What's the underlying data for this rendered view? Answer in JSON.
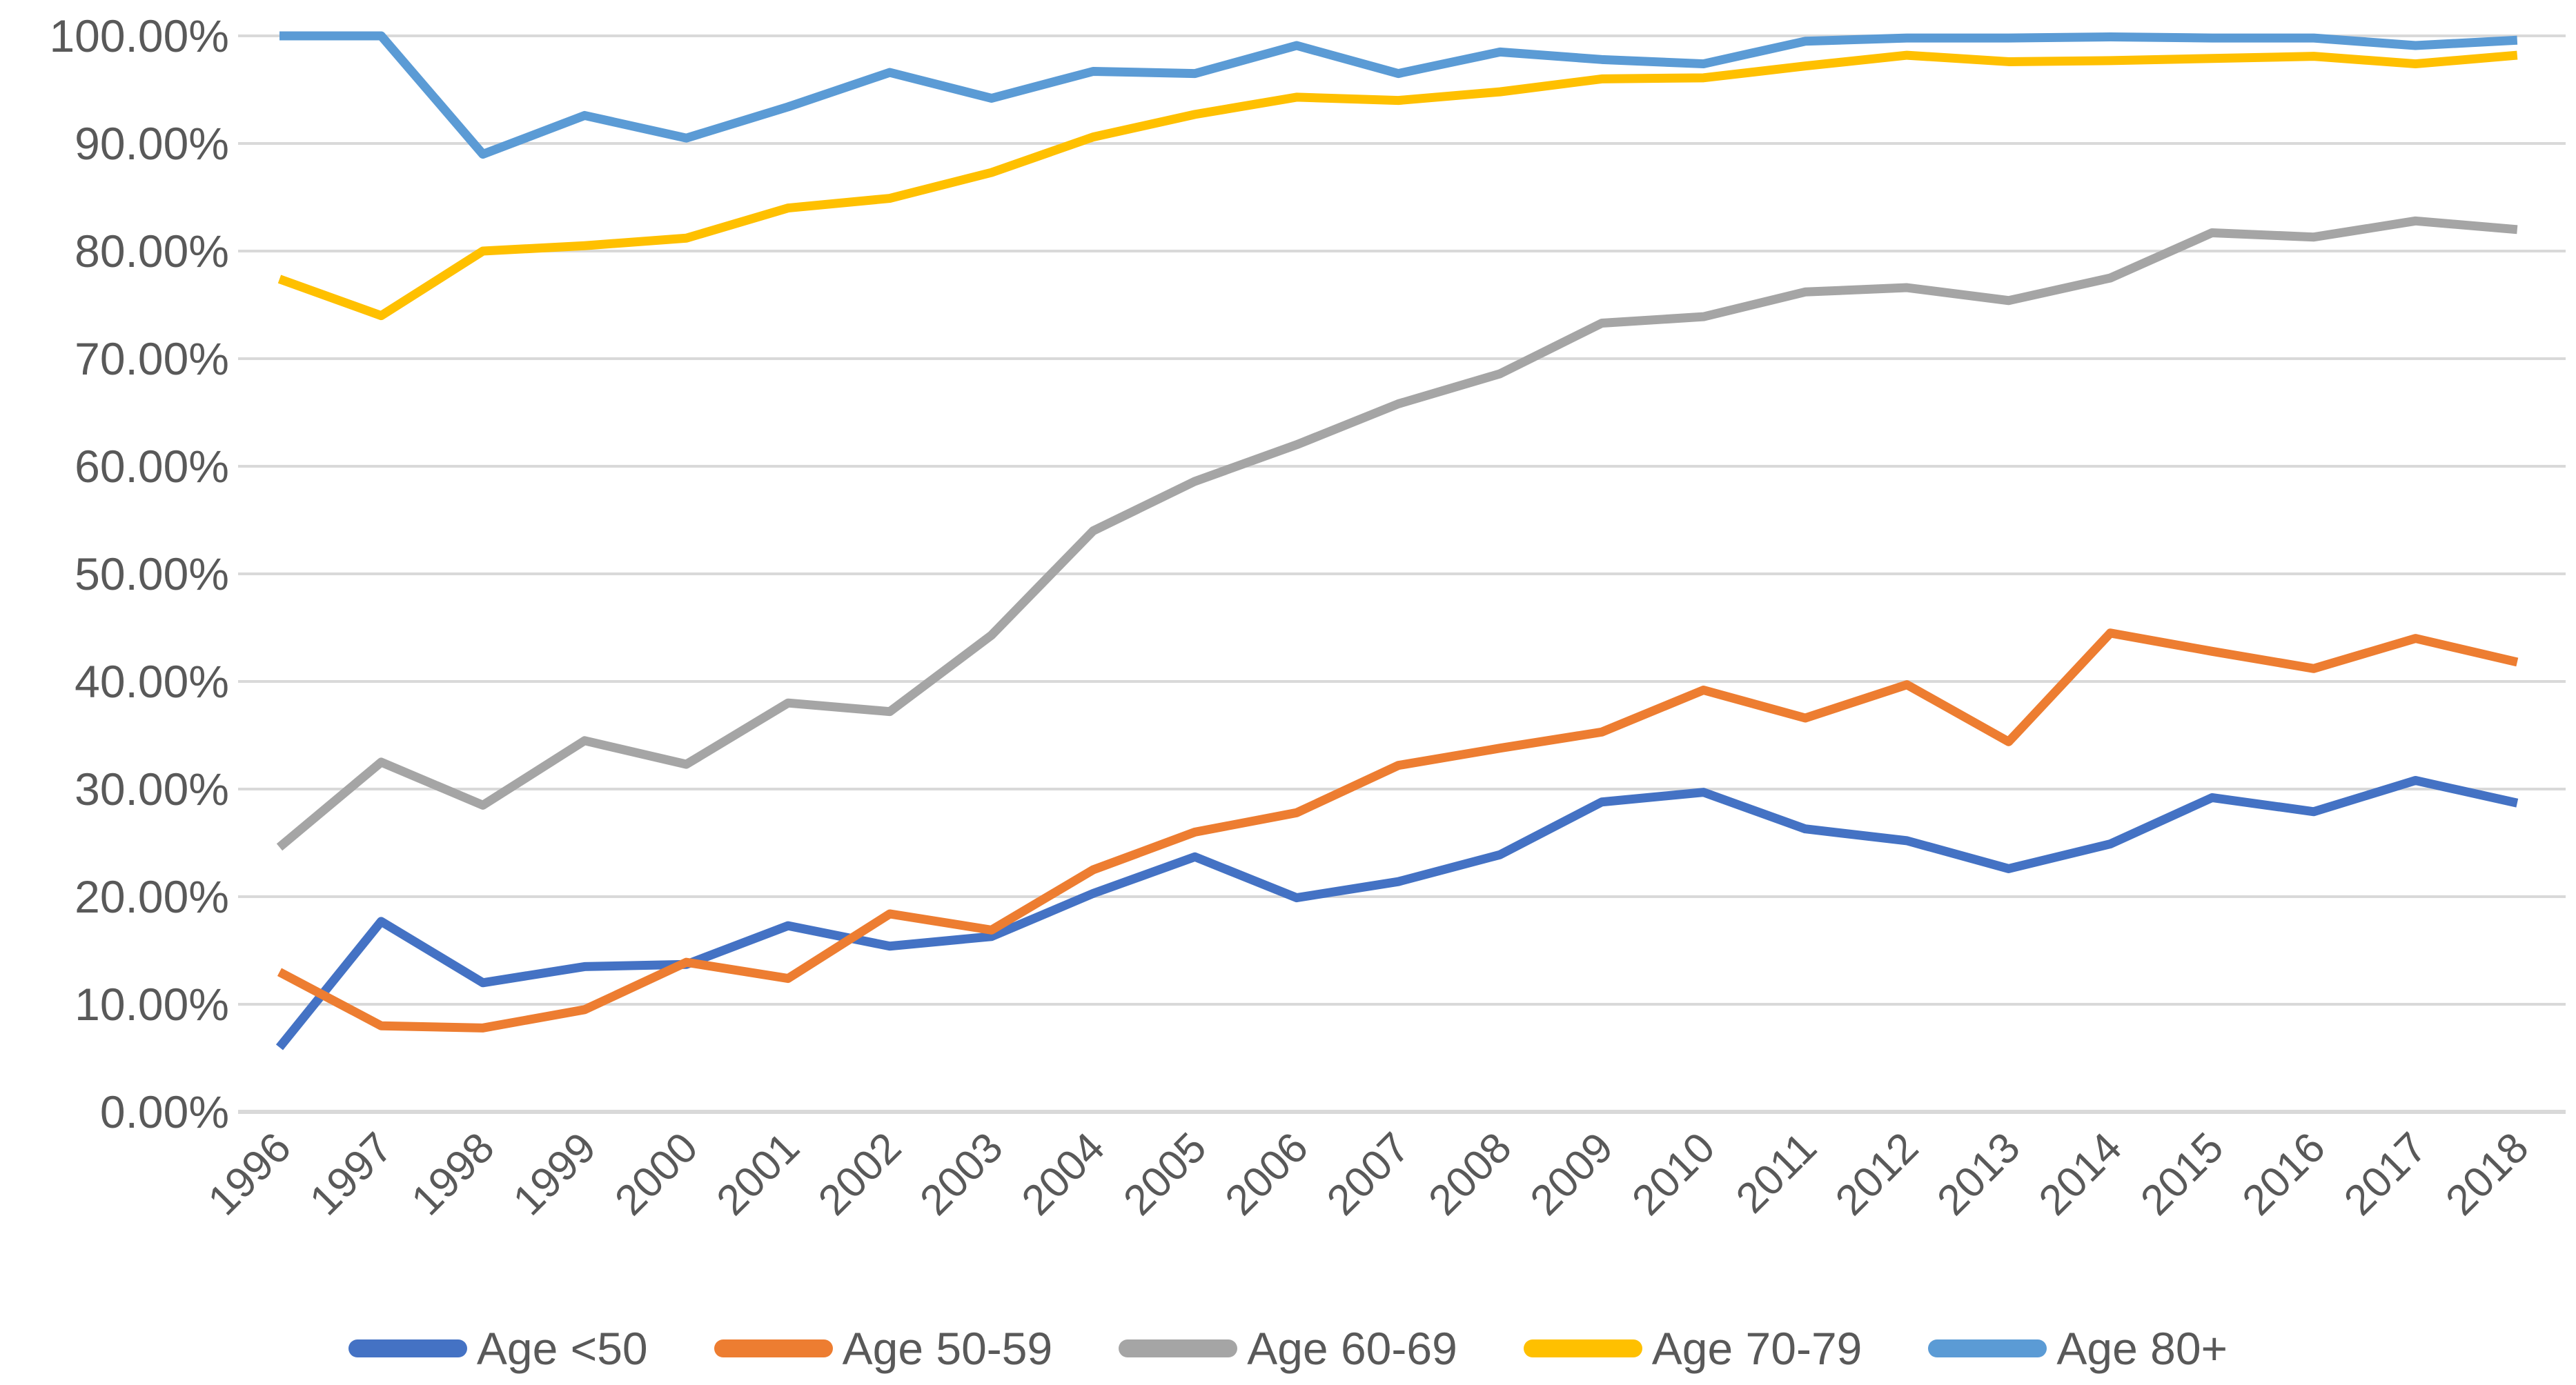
{
  "chart_data": {
    "type": "line",
    "title": "",
    "xlabel": "",
    "ylabel": "",
    "x": [
      1996,
      1997,
      1998,
      1999,
      2000,
      2001,
      2002,
      2003,
      2004,
      2005,
      2006,
      2007,
      2008,
      2009,
      2010,
      2011,
      2012,
      2013,
      2014,
      2015,
      2016,
      2017,
      2018
    ],
    "ylim": [
      0,
      100
    ],
    "ytick_step": 10,
    "y_tick_labels": [
      "100.00%",
      "90.00%",
      "80.00%",
      "70.00%",
      "60.00%",
      "50.00%",
      "40.00%",
      "30.00%",
      "20.00%",
      "10.00%",
      "0.00%"
    ],
    "grid": true,
    "gridline_color": "#D9D9D9",
    "axis_label_color": "#595959",
    "legend_position": "bottom",
    "series": [
      {
        "name": "Age <50",
        "color": "#4472C4",
        "values": [
          6.0,
          17.7,
          12.0,
          13.5,
          13.7,
          17.3,
          15.4,
          16.3,
          20.3,
          23.7,
          19.9,
          21.4,
          23.9,
          28.8,
          29.7,
          26.3,
          25.2,
          22.6,
          24.9,
          29.2,
          27.9,
          30.8,
          28.7
        ]
      },
      {
        "name": "Age 50-59",
        "color": "#ED7D31",
        "values": [
          13.0,
          8.0,
          7.8,
          9.5,
          13.9,
          12.4,
          18.4,
          16.9,
          22.5,
          26.0,
          27.8,
          32.2,
          33.8,
          35.3,
          39.2,
          36.6,
          39.7,
          34.4,
          44.5,
          42.8,
          41.2,
          44.0,
          41.8
        ]
      },
      {
        "name": "Age 60-69",
        "color": "#A5A5A5",
        "values": [
          24.6,
          32.5,
          28.5,
          34.5,
          32.3,
          38.0,
          37.2,
          44.3,
          54.0,
          58.6,
          62.0,
          65.8,
          68.6,
          73.3,
          73.9,
          76.2,
          76.6,
          75.4,
          77.5,
          81.7,
          81.3,
          82.8,
          82.0
        ]
      },
      {
        "name": "Age 70-79",
        "color": "#FFC000",
        "values": [
          77.4,
          74.0,
          80.0,
          80.5,
          81.2,
          84.0,
          84.9,
          87.3,
          90.6,
          92.7,
          94.3,
          94.0,
          94.8,
          96.0,
          96.1,
          97.2,
          98.2,
          97.6,
          97.7,
          97.9,
          98.1,
          97.4,
          98.2
        ]
      },
      {
        "name": "Age 80+",
        "color": "#5B9BD5",
        "values": [
          100.0,
          100.0,
          89.0,
          92.6,
          90.5,
          93.4,
          96.6,
          94.2,
          96.7,
          96.5,
          99.1,
          96.5,
          98.5,
          97.8,
          97.4,
          99.5,
          99.8,
          99.8,
          99.9,
          99.8,
          99.8,
          99.1,
          99.6
        ]
      }
    ]
  }
}
